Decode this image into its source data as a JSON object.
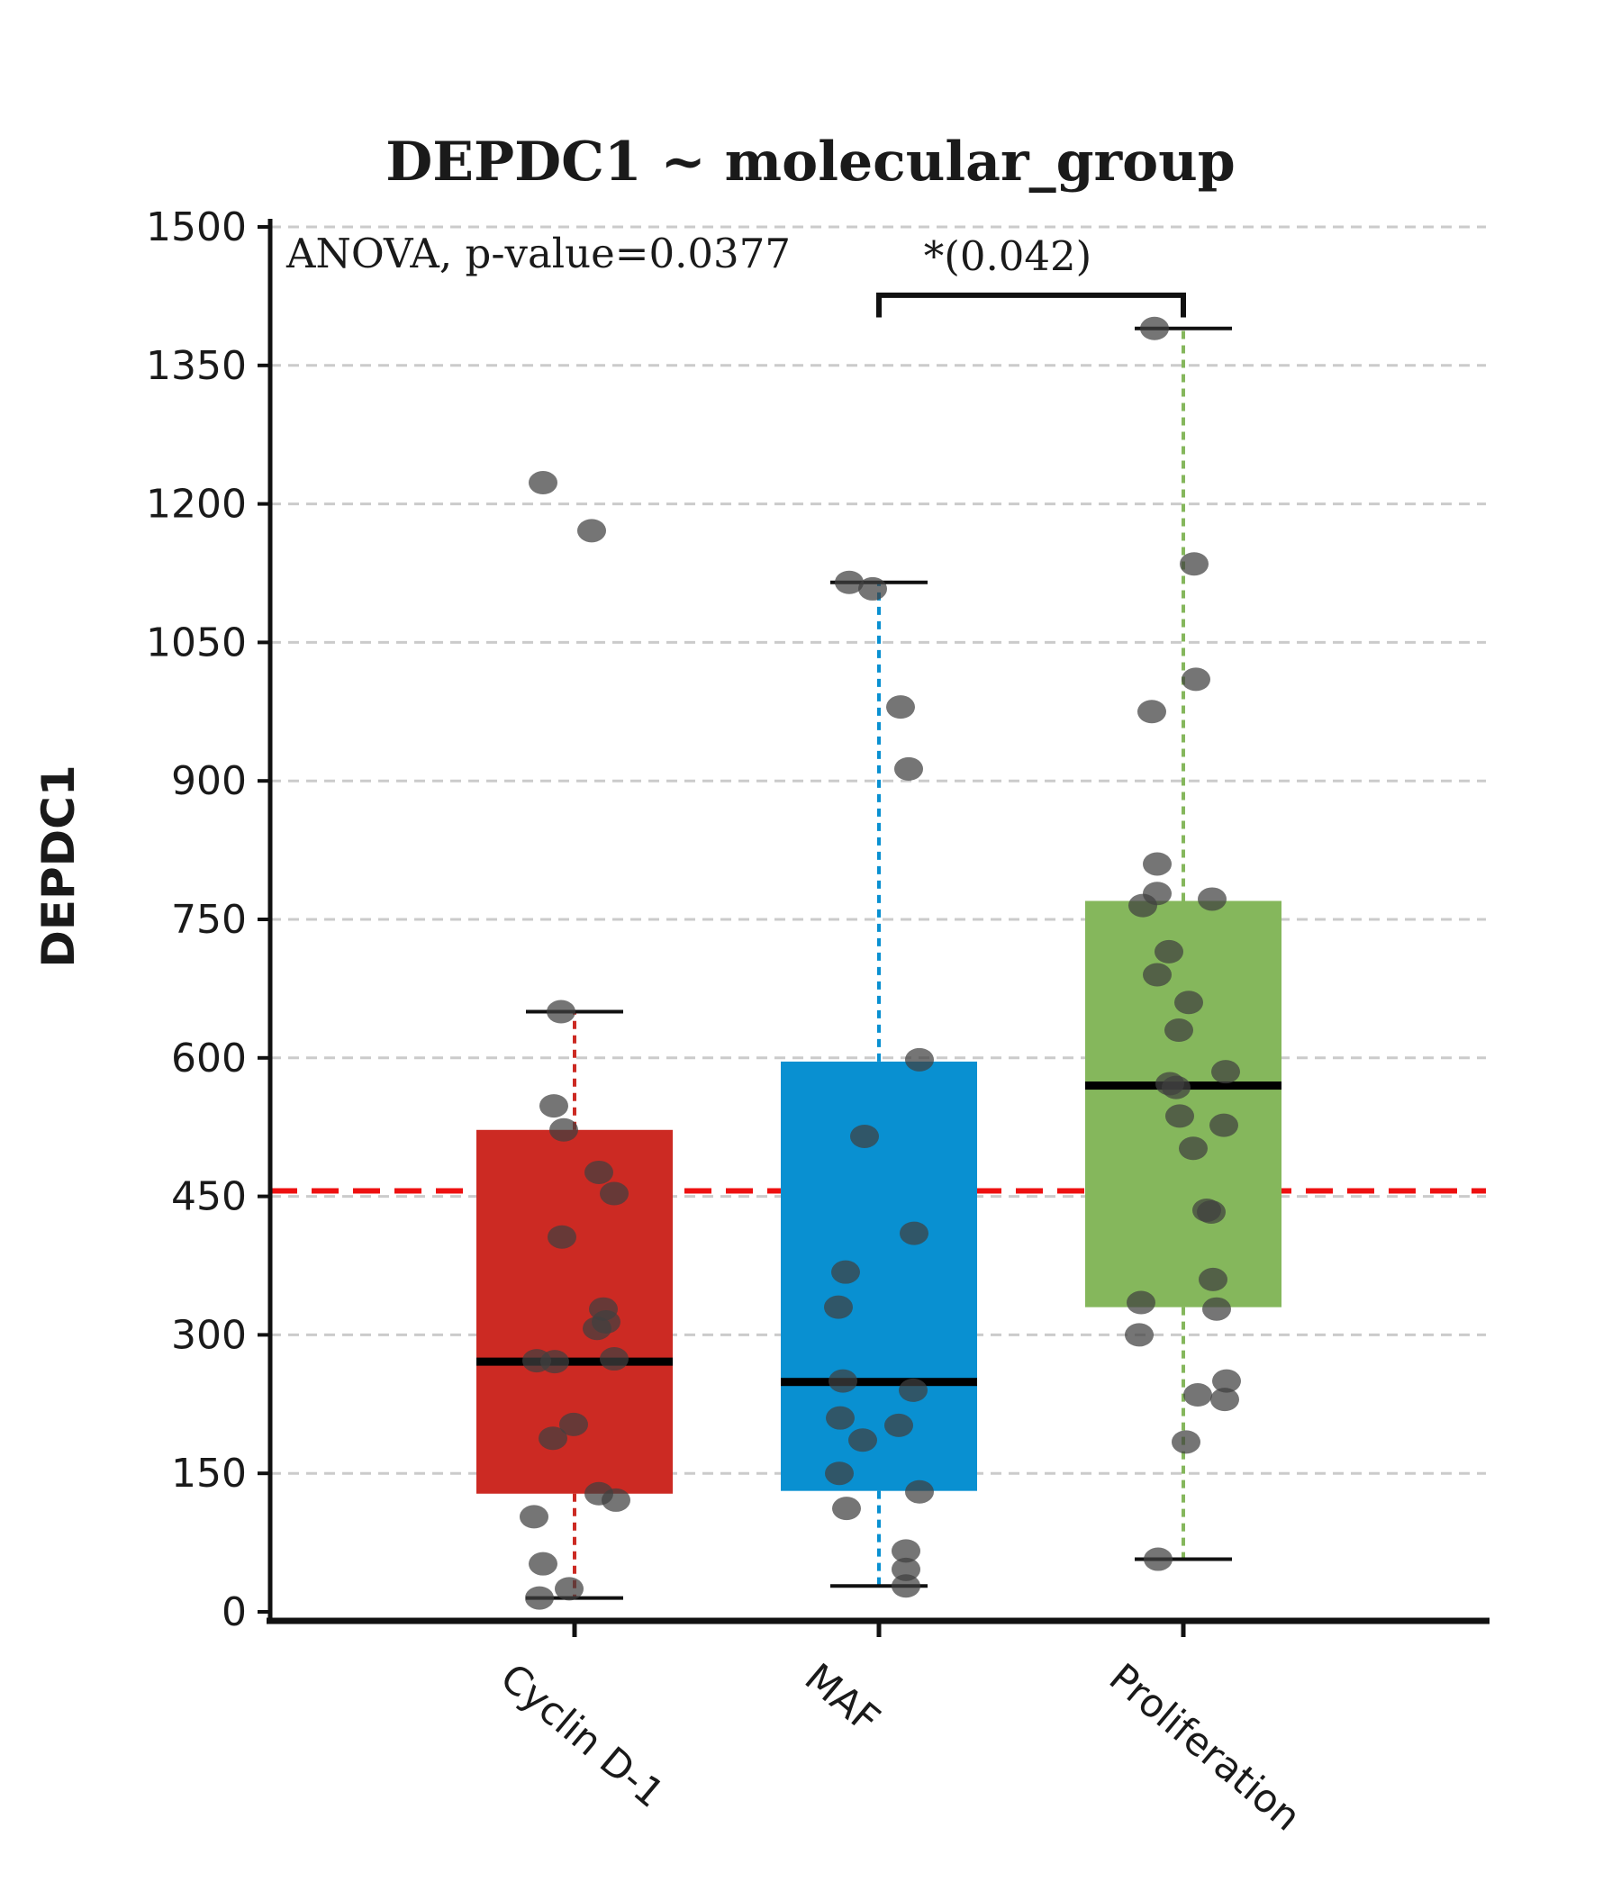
{
  "chart_data": {
    "type": "boxplot",
    "title": "DEPDC1 ~ molecular_group",
    "anova_annotation": "ANOVA, p-value=0.0377",
    "significance": {
      "label": "*(0.042)",
      "group_a": "MAF",
      "group_b": "Proliferation",
      "bar_value": 1426,
      "foot_value": 1402
    },
    "ylabel": "DEPDC1",
    "xlabel": "",
    "ylim": [
      0,
      1500
    ],
    "yticks": [
      0,
      150,
      300,
      450,
      600,
      750,
      900,
      1050,
      1200,
      1350,
      1500
    ],
    "grid": "horizontal-dashed",
    "legend": "none",
    "reference_line": {
      "value": 456,
      "color": "#ee1010",
      "style": "dashed"
    },
    "point_style": {
      "color": "#404040",
      "opacity": 0.72
    },
    "grid_color": "#cbcbcb",
    "axis_color": "#111111",
    "categories": [
      "Cyclin D-1",
      "MAF",
      "Proliferation"
    ],
    "groups": [
      {
        "label": "Cyclin D-1",
        "color": "#cc2a23",
        "box": {
          "q1": 128,
          "median": 271,
          "q3": 522,
          "whisker_low": 15,
          "whisker_high": 650
        },
        "points": [
          [
            -35,
            1223
          ],
          [
            19,
            1171
          ],
          [
            -15,
            650
          ],
          [
            -23,
            548
          ],
          [
            -12,
            522
          ],
          [
            27,
            476
          ],
          [
            44,
            453
          ],
          [
            -14,
            406
          ],
          [
            32,
            328
          ],
          [
            35,
            314
          ],
          [
            25,
            307
          ],
          [
            44,
            274
          ],
          [
            -42,
            272
          ],
          [
            -22,
            271
          ],
          [
            -1,
            203
          ],
          [
            -24,
            188
          ],
          [
            27,
            128
          ],
          [
            46,
            121
          ],
          [
            -45,
            103
          ],
          [
            -35,
            52
          ],
          [
            -6,
            25
          ],
          [
            -39,
            15
          ]
        ]
      },
      {
        "label": "MAF",
        "color": "#0990d1",
        "box": {
          "q1": 131,
          "median": 249,
          "q3": 596,
          "whisker_low": 28,
          "whisker_high": 1115
        },
        "points": [
          [
            -33,
            1115
          ],
          [
            -7,
            1108
          ],
          [
            24,
            980
          ],
          [
            33,
            913
          ],
          [
            45,
            598
          ],
          [
            -16,
            515
          ],
          [
            39,
            410
          ],
          [
            -37,
            368
          ],
          [
            -45,
            330
          ],
          [
            -40,
            250
          ],
          [
            38,
            240
          ],
          [
            -43,
            210
          ],
          [
            22,
            202
          ],
          [
            -18,
            186
          ],
          [
            -44,
            150
          ],
          [
            45,
            130
          ],
          [
            -36,
            112
          ],
          [
            30,
            66
          ],
          [
            30,
            46
          ],
          [
            30,
            28
          ]
        ]
      },
      {
        "label": "Proliferation",
        "color": "#85b75c",
        "box": {
          "q1": 330,
          "median": 570,
          "q3": 770,
          "whisker_low": 57,
          "whisker_high": 1390
        },
        "points": [
          [
            -32,
            1390
          ],
          [
            12,
            1135
          ],
          [
            14,
            1010
          ],
          [
            -35,
            975
          ],
          [
            -29,
            810
          ],
          [
            -29,
            778
          ],
          [
            32,
            772
          ],
          [
            -45,
            765
          ],
          [
            -16,
            715
          ],
          [
            -29,
            690
          ],
          [
            6,
            660
          ],
          [
            -5,
            630
          ],
          [
            47,
            585
          ],
          [
            -15,
            572
          ],
          [
            -8,
            568
          ],
          [
            -4,
            537
          ],
          [
            45,
            527
          ],
          [
            11,
            502
          ],
          [
            26,
            435
          ],
          [
            31,
            433
          ],
          [
            33,
            360
          ],
          [
            -47,
            335
          ],
          [
            37,
            328
          ],
          [
            -49,
            300
          ],
          [
            48,
            250
          ],
          [
            16,
            235
          ],
          [
            46,
            230
          ],
          [
            3,
            184
          ],
          [
            -28,
            57
          ]
        ]
      }
    ]
  }
}
